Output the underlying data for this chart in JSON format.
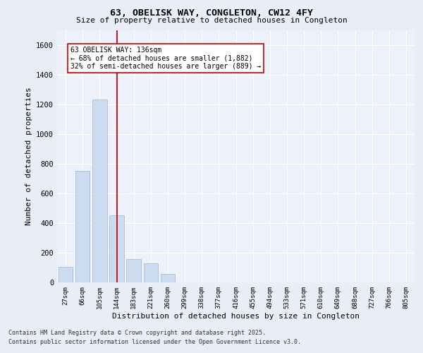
{
  "title_line1": "63, OBELISK WAY, CONGLETON, CW12 4FY",
  "title_line2": "Size of property relative to detached houses in Congleton",
  "xlabel": "Distribution of detached houses by size in Congleton",
  "ylabel": "Number of detached properties",
  "categories": [
    "27sqm",
    "66sqm",
    "105sqm",
    "144sqm",
    "183sqm",
    "221sqm",
    "260sqm",
    "299sqm",
    "338sqm",
    "377sqm",
    "416sqm",
    "455sqm",
    "494sqm",
    "533sqm",
    "571sqm",
    "610sqm",
    "649sqm",
    "688sqm",
    "727sqm",
    "766sqm",
    "805sqm"
  ],
  "values": [
    105,
    750,
    1230,
    450,
    155,
    130,
    55,
    0,
    0,
    0,
    0,
    0,
    0,
    0,
    0,
    0,
    0,
    0,
    0,
    0,
    0
  ],
  "bar_color": "#ccdcf0",
  "bar_edge_color": "#aabdd8",
  "vline_x": 3,
  "vline_color": "#cc0000",
  "annotation_text": "63 OBELISK WAY: 136sqm\n← 68% of detached houses are smaller (1,882)\n32% of semi-detached houses are larger (889) →",
  "ylim": [
    0,
    1700
  ],
  "yticks": [
    0,
    200,
    400,
    600,
    800,
    1000,
    1200,
    1400,
    1600
  ],
  "footer_line1": "Contains HM Land Registry data © Crown copyright and database right 2025.",
  "footer_line2": "Contains public sector information licensed under the Open Government Licence v3.0.",
  "bg_color": "#e8edf7",
  "plot_bg_color": "#edf2fa"
}
